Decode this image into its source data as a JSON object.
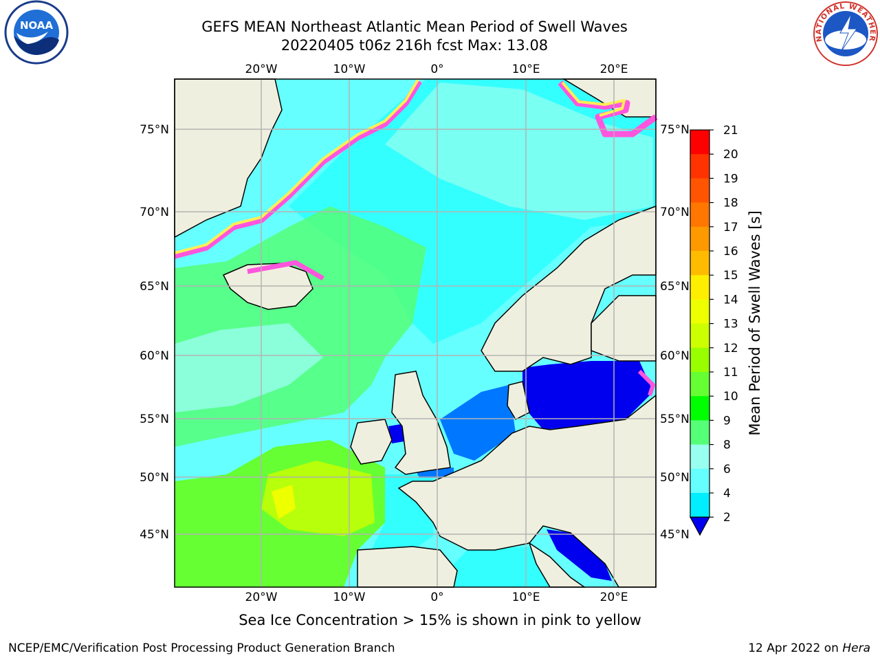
{
  "title": {
    "line1": "GEFS MEAN Northeast Atlantic Mean Period of Swell Waves",
    "line2": "20220405 t06z 216h fcst   Max: 13.08"
  },
  "logos": {
    "left": {
      "icon": "noaa-logo-icon",
      "text": "NOAA"
    },
    "right": {
      "icon": "national-weather-service-logo-icon",
      "text": "NATIONAL WEATHER SERVICE"
    }
  },
  "axes": {
    "lon_labels": [
      "20°W",
      "10°W",
      "0°",
      "10°E",
      "20°E"
    ],
    "lat_labels": [
      "75°N",
      "70°N",
      "65°N",
      "60°N",
      "55°N",
      "50°N",
      "45°N"
    ]
  },
  "colorbar": {
    "title": "Mean Period of Swell Waves [s]",
    "ticks": [
      "21",
      "20",
      "19",
      "18",
      "17",
      "16",
      "15",
      "14",
      "13",
      "12",
      "11",
      "10",
      "9",
      "8",
      "6",
      "4",
      "2"
    ],
    "colors": [
      "#ff0000",
      "#ff3300",
      "#ff5500",
      "#ff7700",
      "#ff9900",
      "#ffbb00",
      "#ffee00",
      "#eeff00",
      "#ccff00",
      "#99ff00",
      "#66ff33",
      "#00ff00",
      "#55ff77",
      "#99ffee",
      "#66ffff",
      "#00eeff",
      "#0077ff",
      "#0000ee"
    ]
  },
  "caption": "Sea Ice Concentration > 15% is shown in pink to yellow",
  "footer": {
    "left": "NCEP/EMC/Verification Post Processing Product Generation Branch",
    "right_date": "12 Apr 2022 on",
    "right_host": "Hera"
  },
  "colors": {
    "land": "#efefdf",
    "grid": "#b4b4b4",
    "ice_edge": "#ff55dd",
    "ice_yellow": "#ffee55"
  }
}
